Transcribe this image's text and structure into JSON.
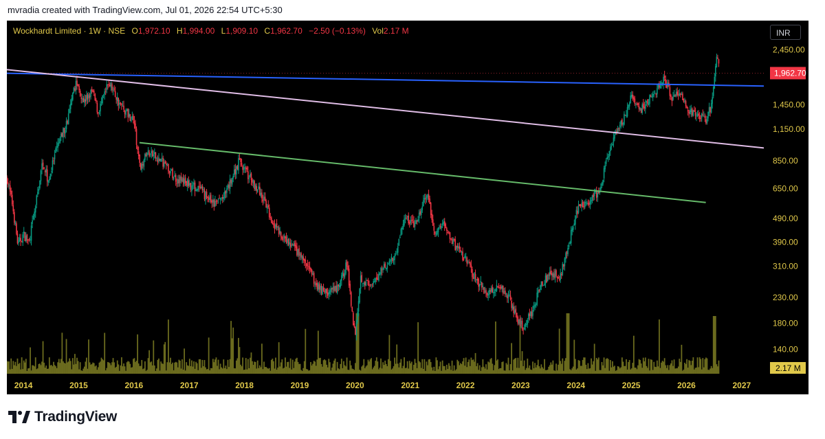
{
  "attribution": "mvradia created with TradingView.com, Jul 01, 2026 22:54 UTC+5:30",
  "legend": {
    "symbol": "Wockhardt Limited · 1W · NSE",
    "open_label": "O",
    "open": "1,972.10",
    "high_label": "H",
    "high": "1,994.00",
    "low_label": "L",
    "low": "1,909.10",
    "close_label": "C",
    "close": "1,962.70",
    "change": "−2.50 (−0.13%)",
    "vol_label": "Vol",
    "vol": "2.17 M"
  },
  "currency_button": "INR",
  "brand": {
    "name": "TradingView",
    "logo_icon": "tradingview-logo-icon"
  },
  "colors": {
    "background": "#000000",
    "up_candle": "#089981",
    "down_candle": "#f23645",
    "volume": "#6b6b1e",
    "axis_text": "#e0c84a",
    "trendline_blue": "#2962ff",
    "trendline_pink": "#e1bee7",
    "trendline_green": "#66bb6a",
    "price_tag": "#f23645"
  },
  "chart_data": {
    "type": "candlestick",
    "symbol": "Wockhardt Limited",
    "interval": "1W",
    "exchange": "NSE",
    "currency": "INR",
    "y_scale": "log",
    "ylim": [
      120,
      2900
    ],
    "x_range": [
      2013.7,
      2027.4
    ],
    "x_ticks": [
      "2014",
      "2015",
      "2016",
      "2017",
      "2018",
      "2019",
      "2020",
      "2021",
      "2022",
      "2023",
      "2024",
      "2025",
      "2026",
      "2027"
    ],
    "y_ticks": [
      "2,450.00",
      "1,450.00",
      "1,150.00",
      "850.00",
      "650.00",
      "490.00",
      "390.00",
      "310.00",
      "230.00",
      "180.00",
      "140.00"
    ],
    "last_price": "1,962.70",
    "last_volume": "2.17 M",
    "price_path": [
      [
        2013.7,
        720
      ],
      [
        2013.8,
        560
      ],
      [
        2013.9,
        380
      ],
      [
        2014.0,
        420
      ],
      [
        2014.1,
        390
      ],
      [
        2014.2,
        520
      ],
      [
        2014.35,
        850
      ],
      [
        2014.45,
        700
      ],
      [
        2014.6,
        950
      ],
      [
        2014.8,
        1250
      ],
      [
        2014.95,
        1800
      ],
      [
        2015.1,
        1500
      ],
      [
        2015.25,
        1650
      ],
      [
        2015.35,
        1350
      ],
      [
        2015.55,
        1800
      ],
      [
        2015.75,
        1450
      ],
      [
        2016.0,
        1250
      ],
      [
        2016.1,
        800
      ],
      [
        2016.25,
        920
      ],
      [
        2016.5,
        850
      ],
      [
        2016.75,
        720
      ],
      [
        2017.0,
        680
      ],
      [
        2017.2,
        640
      ],
      [
        2017.45,
        560
      ],
      [
        2017.65,
        610
      ],
      [
        2017.9,
        850
      ],
      [
        2018.1,
        720
      ],
      [
        2018.3,
        620
      ],
      [
        2018.5,
        480
      ],
      [
        2018.7,
        400
      ],
      [
        2018.9,
        370
      ],
      [
        2019.1,
        320
      ],
      [
        2019.3,
        260
      ],
      [
        2019.5,
        240
      ],
      [
        2019.7,
        250
      ],
      [
        2019.85,
        320
      ],
      [
        2020.0,
        160
      ],
      [
        2020.1,
        280
      ],
      [
        2020.3,
        250
      ],
      [
        2020.5,
        310
      ],
      [
        2020.7,
        330
      ],
      [
        2020.9,
        490
      ],
      [
        2021.1,
        460
      ],
      [
        2021.3,
        620
      ],
      [
        2021.45,
        420
      ],
      [
        2021.6,
        470
      ],
      [
        2021.8,
        380
      ],
      [
        2022.0,
        330
      ],
      [
        2022.2,
        270
      ],
      [
        2022.4,
        240
      ],
      [
        2022.6,
        260
      ],
      [
        2022.8,
        230
      ],
      [
        2022.95,
        180
      ],
      [
        2023.05,
        175
      ],
      [
        2023.2,
        200
      ],
      [
        2023.4,
        270
      ],
      [
        2023.6,
        290
      ],
      [
        2023.7,
        270
      ],
      [
        2023.8,
        340
      ],
      [
        2023.9,
        410
      ],
      [
        2024.0,
        520
      ],
      [
        2024.15,
        560
      ],
      [
        2024.3,
        600
      ],
      [
        2024.45,
        640
      ],
      [
        2024.55,
        870
      ],
      [
        2024.7,
        1050
      ],
      [
        2024.85,
        1250
      ],
      [
        2025.0,
        1550
      ],
      [
        2025.15,
        1350
      ],
      [
        2025.3,
        1500
      ],
      [
        2025.45,
        1650
      ],
      [
        2025.6,
        1850
      ],
      [
        2025.75,
        1550
      ],
      [
        2025.9,
        1600
      ],
      [
        2026.05,
        1350
      ],
      [
        2026.2,
        1300
      ],
      [
        2026.35,
        1250
      ],
      [
        2026.45,
        1450
      ],
      [
        2026.55,
        2300
      ],
      [
        2026.6,
        1960
      ]
    ],
    "trendlines": [
      {
        "name": "blue",
        "points": [
          [
            2013.7,
            1960
          ],
          [
            2027.4,
            1735
          ]
        ]
      },
      {
        "name": "pink",
        "points": [
          [
            2013.7,
            2030
          ],
          [
            2027.4,
            960
          ]
        ]
      },
      {
        "name": "green",
        "points": [
          [
            2016.1,
            1010
          ],
          [
            2026.35,
            570
          ]
        ]
      }
    ]
  }
}
